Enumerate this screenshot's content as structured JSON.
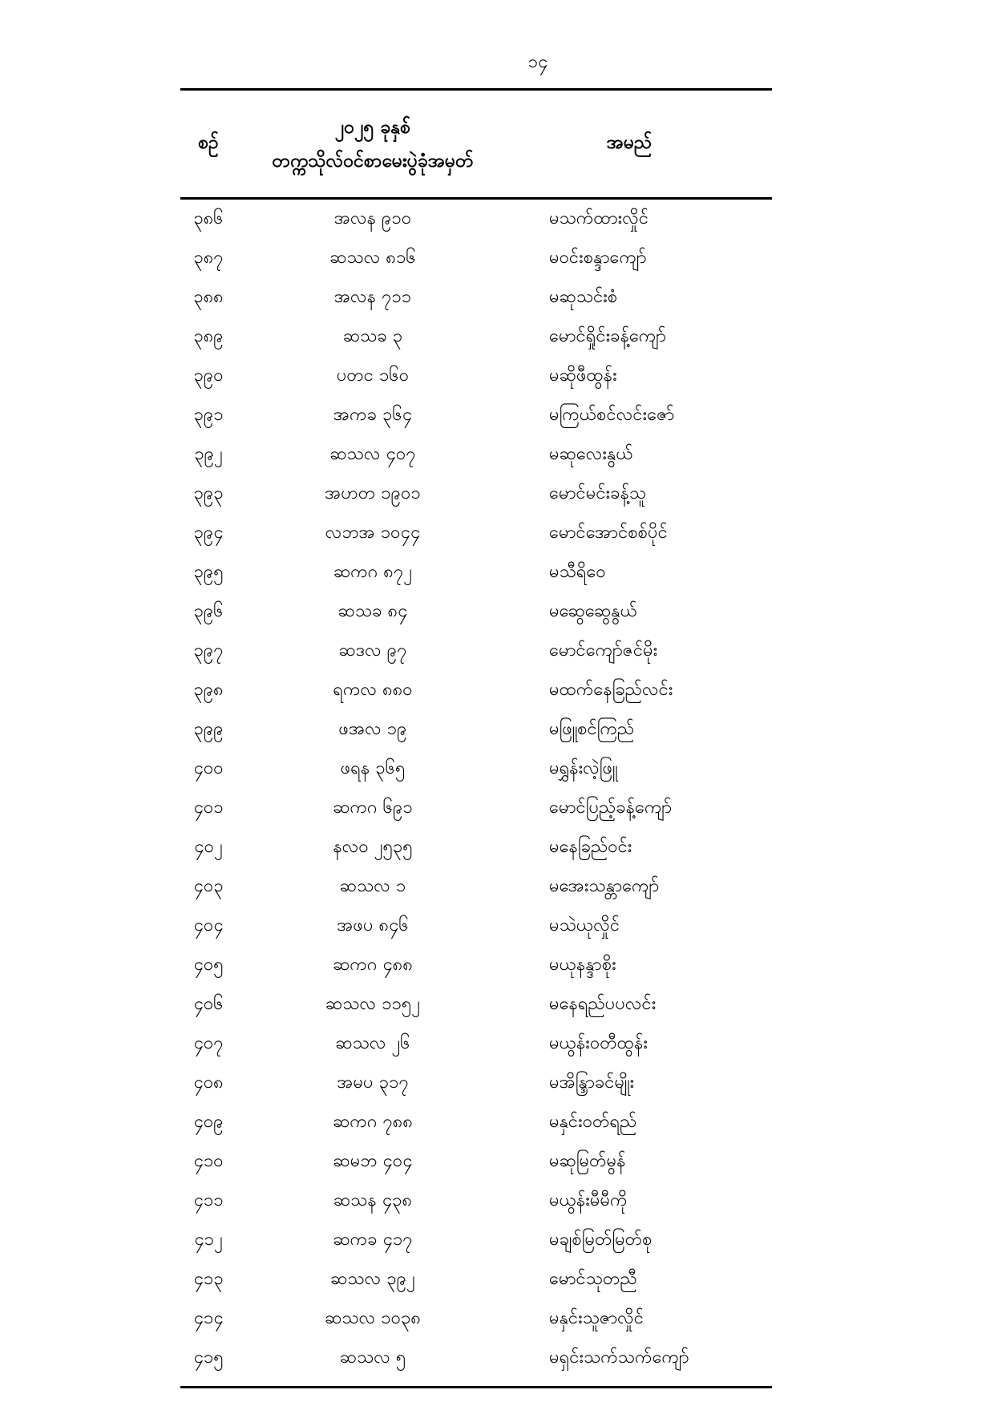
{
  "page_number": "၁၄",
  "table": {
    "header": {
      "serial": "စဉ်",
      "roll_line1": "၂၀၂၅ ခုနှစ်",
      "roll_line2": "တက္ကသိုလ်ဝင်စာမေးပွဲခုံအမှတ်",
      "name": "အမည်"
    },
    "rows": [
      {
        "serial": "၃၈၆",
        "roll": "အလန ၉၁၀",
        "name": "မသက်ထားလှိုင်"
      },
      {
        "serial": "၃၈၇",
        "roll": "ဆသလ ၈၁၆",
        "name": "မဝင်းစန္ဒာကျော်"
      },
      {
        "serial": "၃၈၈",
        "roll": "အလန ၇၁၁",
        "name": "မဆုသင်းစံ"
      },
      {
        "serial": "၃၈၉",
        "roll": "ဆသခ ၃",
        "name": "မောင်ရှိုင်းခန့်ကျော်"
      },
      {
        "serial": "၃၉၀",
        "roll": "ပတင ၁၆၀",
        "name": "မဆိုဖီထွန်း"
      },
      {
        "serial": "၃၉၁",
        "roll": "အကခ ၃၆၄",
        "name": "မကြယ်စင်လင်းဇော်"
      },
      {
        "serial": "၃၉၂",
        "roll": "ဆသလ ၄၀၇",
        "name": "မဆုလေးနွယ်"
      },
      {
        "serial": "၃၉၃",
        "roll": "အဟတ ၁၉၀၁",
        "name": "မောင်မင်းခန့်သူ"
      },
      {
        "serial": "၃၉၄",
        "roll": "လဘအ ၁၀၄၄",
        "name": "မောင်အောင်စစ်ပိုင်"
      },
      {
        "serial": "၃၉၅",
        "roll": "ဆကဂ ၈၇၂",
        "name": "မသီရိဝေ"
      },
      {
        "serial": "၃၉၆",
        "roll": "ဆသခ ၈၄",
        "name": "မဆွေဆွေနွယ်"
      },
      {
        "serial": "၃၉၇",
        "roll": "ဆဒလ ၉၇",
        "name": "မောင်ကျော်ဇင်မိုး"
      },
      {
        "serial": "၃၉၈",
        "roll": "ရကလ ၈၈၀",
        "name": "မထက်နေခြည်လင်း"
      },
      {
        "serial": "၃၉၉",
        "roll": "ဖအလ ၁၉",
        "name": "မဖြူစင်ကြည်"
      },
      {
        "serial": "၄၀၀",
        "roll": "ဖရန ၃၆၅",
        "name": "မရွှန်းလဲ့ဖြူ"
      },
      {
        "serial": "၄၀၁",
        "roll": "ဆကဂ ၆၉၁",
        "name": "မောင်ပြည့်ခန့်ကျော်"
      },
      {
        "serial": "၄၀၂",
        "roll": "နလဝ ၂၅၃၅",
        "name": "မနေခြည်ဝင်း"
      },
      {
        "serial": "၄၀၃",
        "roll": "ဆသလ ၁",
        "name": "မအေးသန္တာကျော်"
      },
      {
        "serial": "၄၀၄",
        "roll": "အဖပ ၈၄၆",
        "name": "မသဲယုလှိုင်"
      },
      {
        "serial": "၄၀၅",
        "roll": "ဆကဂ ၄၈၈",
        "name": "မယုနန္ဒာစိုး"
      },
      {
        "serial": "၄၀၆",
        "roll": "ဆသလ ၁၁၅၂",
        "name": "မနေရည်ပပလင်း"
      },
      {
        "serial": "၄၀၇",
        "roll": "ဆသလ ၂၆",
        "name": "မယွန်းဝတီထွန်း"
      },
      {
        "serial": "၄၀၈",
        "roll": "အမပ ၃၁၇",
        "name": "မအိန္ဒြာခင်မျိုး"
      },
      {
        "serial": "၄၀၉",
        "roll": "ဆကဂ ၇၈၈",
        "name": "မနှင်းဝတ်ရည်"
      },
      {
        "serial": "၄၁၀",
        "roll": "ဆမဘ ၄၀၄",
        "name": "မဆုမြတ်မွန်"
      },
      {
        "serial": "၄၁၁",
        "roll": "ဆသန ၄၃၈",
        "name": "မယွန်းမီမီကို"
      },
      {
        "serial": "၄၁၂",
        "roll": "ဆကခ ၄၁၇",
        "name": "မချစ်မြတ်မြတ်စု"
      },
      {
        "serial": "၄၁၃",
        "roll": "ဆသလ ၃၉၂",
        "name": "မောင်သုတညီ"
      },
      {
        "serial": "၄၁၄",
        "roll": "ဆသလ ၁၀၃၈",
        "name": "မနှင်းသူဇာလှိုင်"
      },
      {
        "serial": "၄၁၅",
        "roll": "ဆသလ ၅",
        "name": "မရှင်းသက်သက်ကျော်"
      }
    ]
  }
}
